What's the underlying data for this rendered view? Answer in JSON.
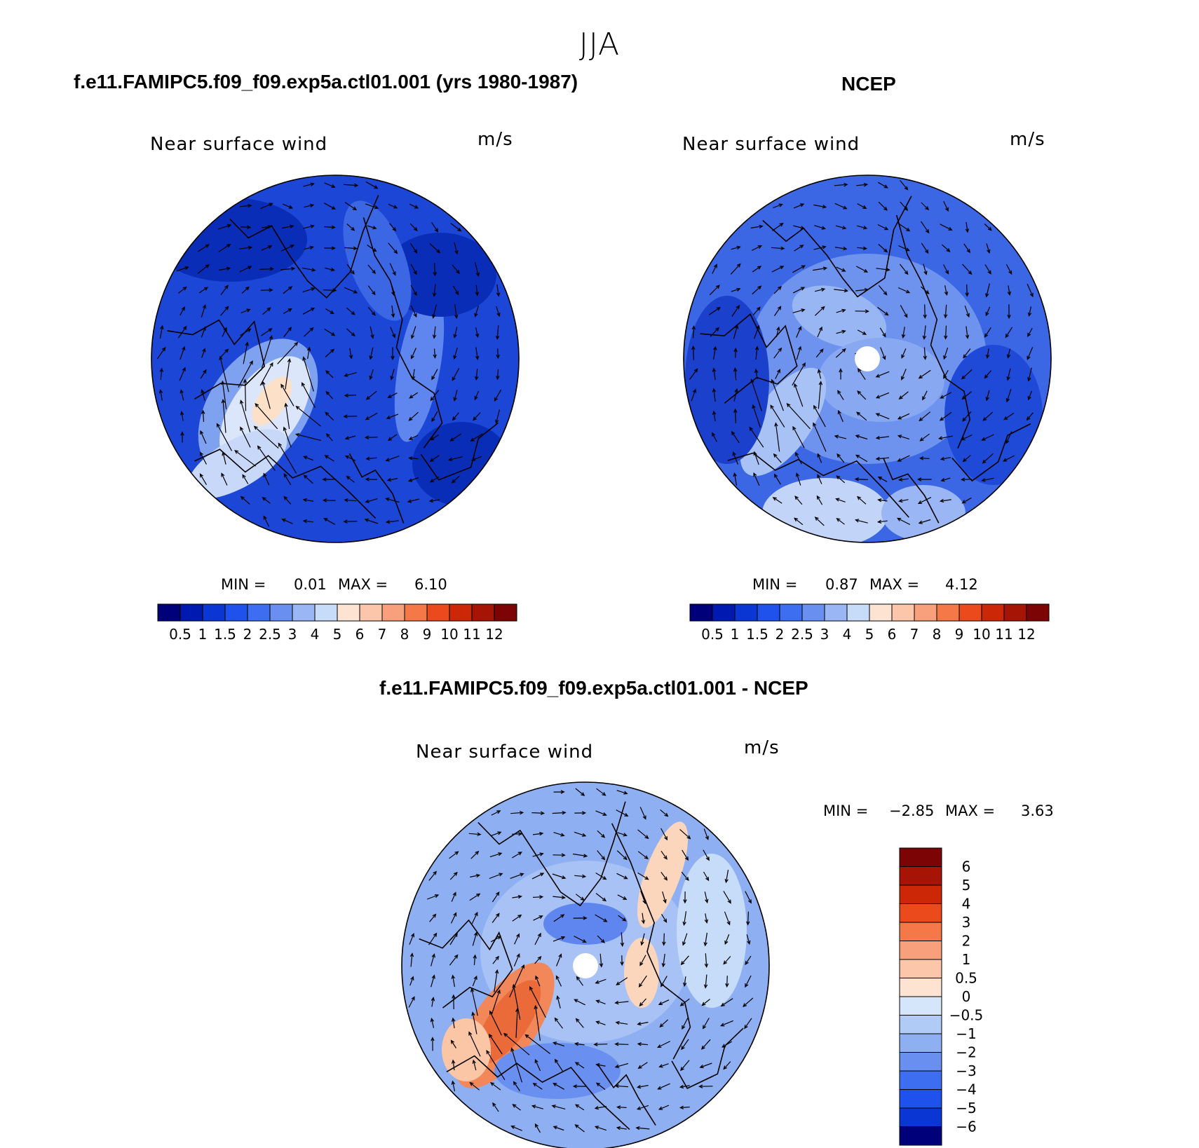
{
  "figure": {
    "season": "JJA",
    "units": "m/s",
    "variable": "Near surface wind"
  },
  "panels": {
    "model": {
      "title": "f.e11.FAMIPC5.f09_f09.exp5a.ctl01.001 (yrs 1980-1987)",
      "subtitle": "Near surface wind",
      "units": "m/s",
      "min_label": "MIN =",
      "min_value": "0.01",
      "max_label": "MAX =",
      "max_value": "6.10"
    },
    "obs": {
      "title": "NCEP",
      "subtitle": "Near surface wind",
      "units": "m/s",
      "min_label": "MIN =",
      "min_value": "0.87",
      "max_label": "MAX =",
      "max_value": "4.12"
    },
    "diff": {
      "title": "f.e11.FAMIPC5.f09_f09.exp5a.ctl01.001 - NCEP",
      "subtitle": "Near surface wind",
      "units": "m/s",
      "min_label": "MIN =",
      "min_value": "−2.85",
      "max_label": "MAX =",
      "max_value": "3.63"
    }
  },
  "chart_data": [
    {
      "type": "heatmap",
      "projection": "polar stereographic (north)",
      "title": "f.e11.FAMIPC5.f09_f09.exp5a.ctl01.001 (yrs 1980-1987)",
      "field": "Near surface wind speed with wind vectors",
      "units": "m/s",
      "min": 0.01,
      "max": 6.1,
      "colorbar": {
        "orientation": "horizontal",
        "levels": [
          "0.5",
          "1",
          "1.5",
          "2",
          "2.5",
          "3",
          "4",
          "5",
          "6",
          "7",
          "8",
          "9",
          "10",
          "11",
          "12"
        ],
        "colors": [
          "#00007a",
          "#0019b0",
          "#0a36d4",
          "#1f52ec",
          "#3d6ef2",
          "#6990f0",
          "#9ab6f4",
          "#c6dcf8",
          "#fde4d2",
          "#fcc6aa",
          "#f8a07c",
          "#f47848",
          "#ea4a1c",
          "#cc2808",
          "#a51404",
          "#7c0404"
        ]
      }
    },
    {
      "type": "heatmap",
      "projection": "polar stereographic (north)",
      "title": "NCEP",
      "field": "Near surface wind speed with wind vectors",
      "units": "m/s",
      "min": 0.87,
      "max": 4.12,
      "colorbar": {
        "orientation": "horizontal",
        "levels": [
          "0.5",
          "1",
          "1.5",
          "2",
          "2.5",
          "3",
          "4",
          "5",
          "6",
          "7",
          "8",
          "9",
          "10",
          "11",
          "12"
        ],
        "colors": [
          "#00007a",
          "#0019b0",
          "#0a36d4",
          "#1f52ec",
          "#3d6ef2",
          "#6990f0",
          "#9ab6f4",
          "#c6dcf8",
          "#fde4d2",
          "#fcc6aa",
          "#f8a07c",
          "#f47848",
          "#ea4a1c",
          "#cc2808",
          "#a51404",
          "#7c0404"
        ]
      }
    },
    {
      "type": "heatmap",
      "projection": "polar stereographic (north)",
      "title": "f.e11.FAMIPC5.f09_f09.exp5a.ctl01.001 - NCEP",
      "field": "Near surface wind speed difference with wind vectors",
      "units": "m/s",
      "min": -2.85,
      "max": 3.63,
      "colorbar": {
        "orientation": "vertical",
        "levels": [
          "6",
          "5",
          "4",
          "3",
          "2",
          "1",
          "0.5",
          "0",
          "−0.5",
          "−1",
          "−2",
          "−3",
          "−4",
          "−5",
          "−6"
        ],
        "colors": [
          "#7c0404",
          "#a51404",
          "#cc2808",
          "#ea4a1c",
          "#f47848",
          "#f8a07c",
          "#fcc6aa",
          "#fde4d2",
          "#d6e6fa",
          "#b0cbf6",
          "#8eb0f2",
          "#6990f0",
          "#3d6ef2",
          "#1f52ec",
          "#0a36d4",
          "#00007a"
        ]
      }
    }
  ]
}
